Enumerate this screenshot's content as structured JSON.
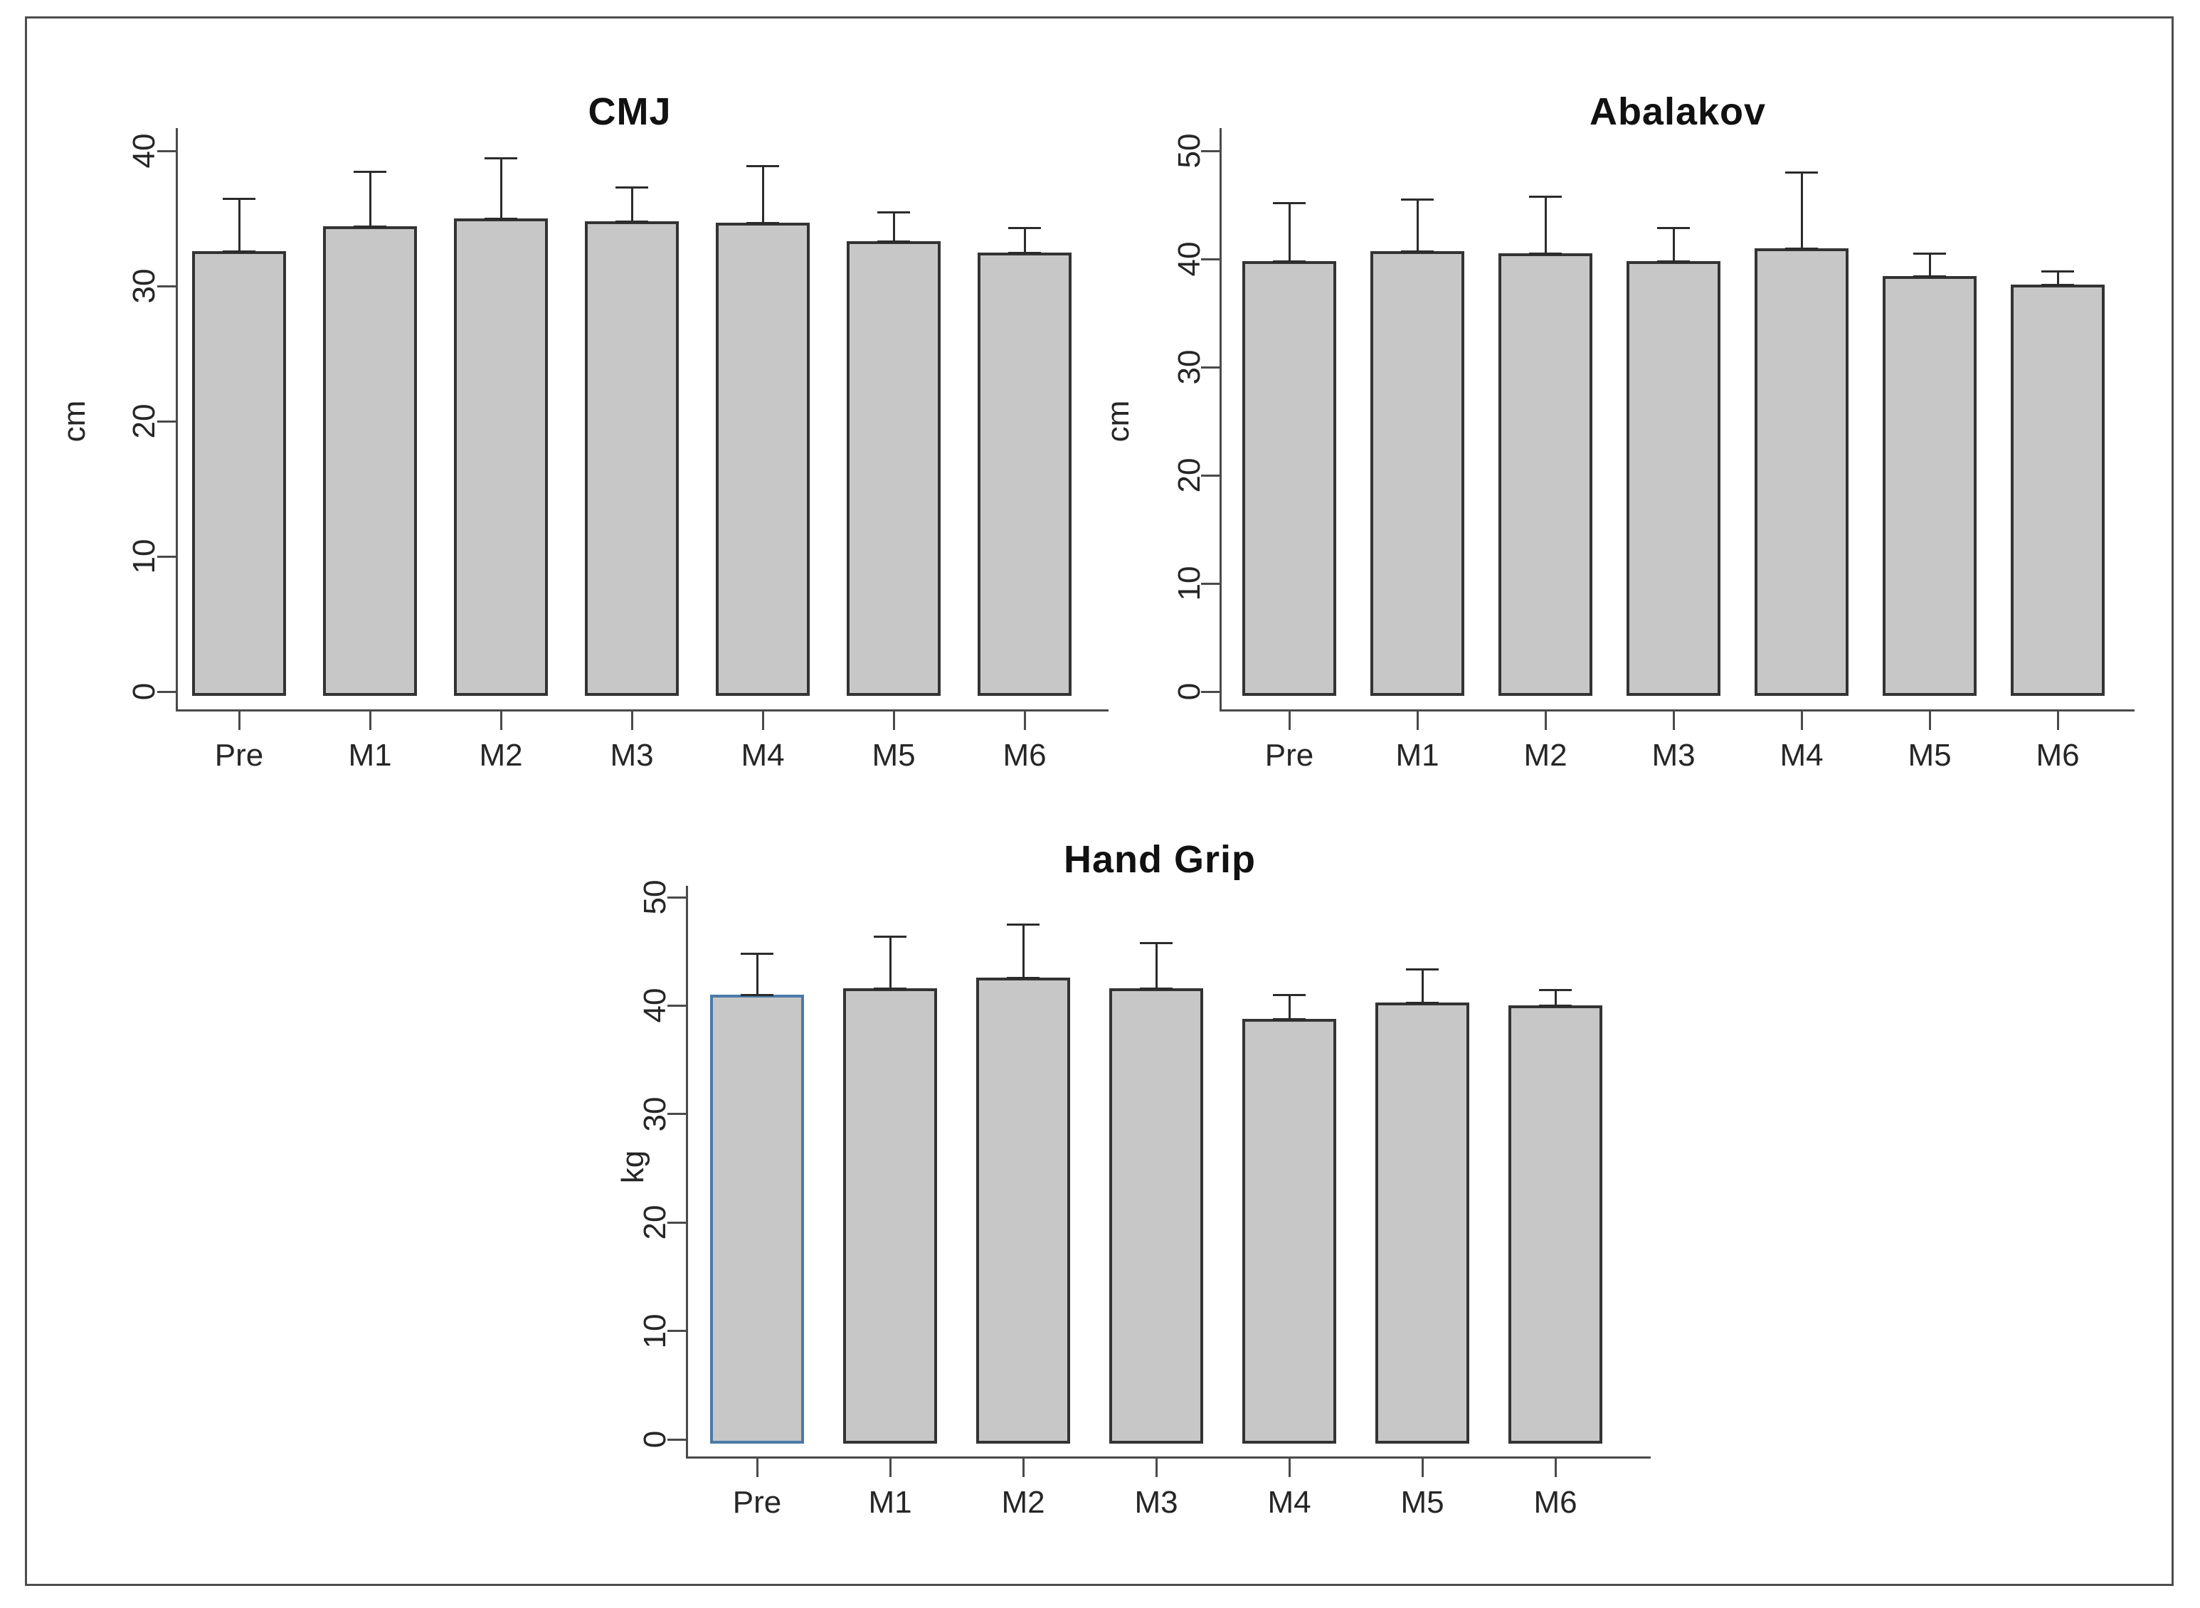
{
  "figure": {
    "kind": "bar-chart-panel",
    "background": "#ffffff",
    "frame_color": "#4d4d4d"
  },
  "colors": {
    "bar_fill": "#c7c7c7",
    "bar_border": "#333333",
    "highlight_bar_border": "#4a7aa8",
    "axis": "#4a4a4a",
    "error_bar": "#2b2b2b",
    "title_text": "#111111",
    "label_text": "#262626"
  },
  "chart_data": [
    {
      "type": "bar",
      "id": "cmj",
      "title": "CMJ",
      "ylabel": "cm",
      "categories": [
        "Pre",
        "M1",
        "M2",
        "M3",
        "M4",
        "M5",
        "M6"
      ],
      "values": [
        32.6,
        34.4,
        35.0,
        34.8,
        34.7,
        33.3,
        32.5
      ],
      "errors_plus": [
        3.9,
        4.1,
        4.5,
        2.5,
        4.2,
        2.2,
        1.8
      ],
      "yticks": [
        0,
        10,
        20,
        30,
        40
      ],
      "ylim": [
        0,
        40
      ],
      "grid": false,
      "legend": null,
      "highlight_index": null
    },
    {
      "type": "bar",
      "id": "abalakov",
      "title": "Abalakov",
      "ylabel": "cm",
      "categories": [
        "Pre",
        "M1",
        "M2",
        "M3",
        "M4",
        "M5",
        "M6"
      ],
      "values": [
        39.8,
        40.7,
        40.5,
        39.8,
        41.0,
        38.4,
        37.6
      ],
      "errors_plus": [
        5.4,
        4.8,
        5.3,
        3.1,
        7.0,
        2.1,
        1.3
      ],
      "yticks": [
        0,
        10,
        20,
        30,
        40,
        50
      ],
      "ylim": [
        0,
        50
      ],
      "grid": false,
      "legend": null,
      "highlight_index": null
    },
    {
      "type": "bar",
      "id": "handgrip",
      "title": "Hand Grip",
      "ylabel": "kg",
      "categories": [
        "Pre",
        "M1",
        "M2",
        "M3",
        "M4",
        "M5",
        "M6"
      ],
      "values": [
        41.0,
        41.6,
        42.6,
        41.6,
        38.8,
        40.3,
        40.0
      ],
      "errors_plus": [
        3.8,
        4.8,
        4.9,
        4.2,
        2.2,
        3.1,
        1.5
      ],
      "yticks": [
        0,
        10,
        20,
        30,
        40,
        50
      ],
      "ylim": [
        0,
        50
      ],
      "grid": false,
      "legend": null,
      "highlight_index": 0
    }
  ]
}
